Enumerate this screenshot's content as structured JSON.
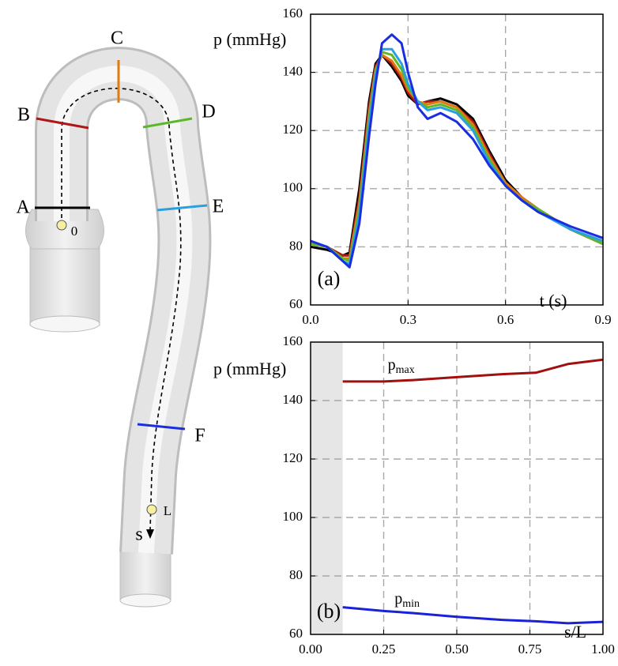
{
  "diagram": {
    "sections": [
      "A",
      "B",
      "C",
      "D",
      "E",
      "F"
    ],
    "start": "0",
    "end": "L",
    "coordinate": "s"
  },
  "chart_data": [
    {
      "type": "line",
      "panel": "(a)",
      "ylabel": "p (mmHg)",
      "xlabel": "t (s)",
      "x": [
        0,
        0.05,
        0.1,
        0.12,
        0.15,
        0.18,
        0.2,
        0.22,
        0.25,
        0.28,
        0.3,
        0.33,
        0.36,
        0.4,
        0.45,
        0.5,
        0.55,
        0.6,
        0.65,
        0.7,
        0.8,
        0.9
      ],
      "series": [
        {
          "color": "#000000",
          "values": [
            80,
            79,
            77,
            78,
            100,
            130,
            143,
            146,
            142,
            137,
            132,
            129,
            130,
            131,
            129,
            124,
            113,
            103,
            97,
            93,
            86,
            81
          ]
        },
        {
          "color": "#b01818",
          "values": [
            81,
            80,
            77,
            77,
            97,
            128,
            142,
            146,
            143,
            138,
            133,
            129,
            130,
            130,
            128,
            123,
            112,
            102,
            97,
            93,
            86,
            81
          ]
        },
        {
          "color": "#e07b10",
          "values": [
            81,
            80,
            76,
            76,
            95,
            126,
            141,
            146,
            144,
            139,
            134,
            130,
            129,
            130,
            128,
            122,
            111,
            102,
            97,
            93,
            86,
            81
          ]
        },
        {
          "color": "#5cb82a",
          "values": [
            81,
            80,
            76,
            75,
            93,
            124,
            140,
            147,
            146,
            141,
            135,
            130,
            128,
            129,
            127,
            121,
            110,
            101,
            96,
            93,
            86,
            81
          ]
        },
        {
          "color": "#2aa0e0",
          "values": [
            82,
            80,
            75,
            74,
            91,
            122,
            139,
            148,
            148,
            143,
            136,
            130,
            127,
            128,
            126,
            120,
            109,
            101,
            96,
            92,
            86,
            82
          ]
        },
        {
          "color": "#1a2ee0",
          "values": [
            82,
            80,
            75,
            73,
            88,
            118,
            136,
            150,
            153,
            150,
            140,
            128,
            124,
            126,
            123,
            117,
            108,
            101,
            96,
            92,
            87,
            83
          ]
        }
      ],
      "xlim": [
        0,
        0.9
      ],
      "ylim": [
        60,
        160
      ],
      "xticks": [
        {
          "value": 0,
          "label": "0.0"
        },
        0.3,
        0.6,
        0.9
      ],
      "yticks": [
        60,
        80,
        100,
        120,
        140,
        160
      ],
      "grid": true
    },
    {
      "type": "line",
      "panel": "(b)",
      "ylabel": "p (mmHg)",
      "xlabel": "s/L",
      "shade": [
        0,
        0.11
      ],
      "x": [
        0.11,
        0.25,
        0.35,
        0.5,
        0.65,
        0.77,
        0.88,
        1.0
      ],
      "series": [
        {
          "name": "p",
          "subscript": "max",
          "color": "#a01010",
          "values": [
            146.5,
            146.5,
            147,
            148,
            149,
            149.5,
            152.5,
            154
          ]
        },
        {
          "name": "p",
          "subscript": "min",
          "color": "#1a22d8",
          "values": [
            69.3,
            68,
            67.3,
            66,
            65,
            64.5,
            63.8,
            64.3
          ]
        }
      ],
      "xlim": [
        0,
        1
      ],
      "ylim": [
        60,
        160
      ],
      "xticks": [
        {
          "value": 0,
          "label": "0.00"
        },
        0.25,
        {
          "value": 0.5,
          "label": "0.50"
        },
        0.75,
        {
          "value": 1,
          "label": "1.00"
        }
      ],
      "yticks": [
        60,
        80,
        100,
        120,
        140,
        160
      ],
      "grid": true
    }
  ]
}
